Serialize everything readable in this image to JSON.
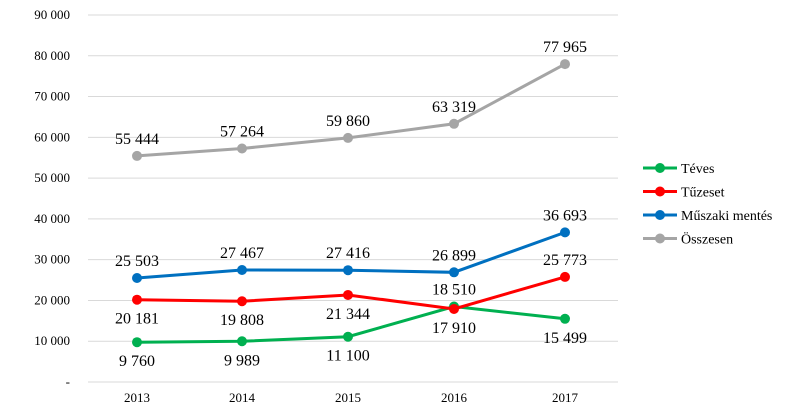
{
  "chart_data": {
    "type": "line",
    "title": "",
    "xlabel": "",
    "ylabel": "",
    "categories": [
      "2013",
      "2014",
      "2015",
      "2016",
      "2017"
    ],
    "ylim": [
      0,
      90000
    ],
    "yticks": [
      0,
      10000,
      20000,
      30000,
      40000,
      50000,
      60000,
      70000,
      80000,
      90000
    ],
    "ytick_labels": [
      "-",
      "10 000",
      "20 000",
      "30 000",
      "40 000",
      "50 000",
      "60 000",
      "70 000",
      "80 000",
      "90 000"
    ],
    "grid": true,
    "legend_position": "right",
    "series": [
      {
        "name": "Téves",
        "color": "#00b050",
        "values": [
          9760,
          9989,
          11100,
          18510,
          15499
        ],
        "labels": [
          "9 760",
          "9 989",
          "11 100",
          "18 510",
          "15 499"
        ],
        "label_side": [
          "below",
          "below",
          "below",
          "above",
          "below"
        ]
      },
      {
        "name": "Tűzeset",
        "color": "#ff0000",
        "values": [
          20181,
          19808,
          21344,
          17910,
          25773
        ],
        "labels": [
          "20 181",
          "19 808",
          "21 344",
          "17 910",
          "25 773"
        ],
        "label_side": [
          "below",
          "below",
          "below",
          "below",
          "above"
        ]
      },
      {
        "name": "Műszaki mentés",
        "color": "#0070c0",
        "values": [
          25503,
          27467,
          27416,
          26899,
          36693
        ],
        "labels": [
          "25 503",
          "27 467",
          "27 416",
          "26 899",
          "36 693"
        ],
        "label_side": [
          "above",
          "above",
          "above",
          "above",
          "above"
        ]
      },
      {
        "name": "Összesen",
        "color": "#a5a5a5",
        "values": [
          55444,
          57264,
          59860,
          63319,
          77965
        ],
        "labels": [
          "55 444",
          "57 264",
          "59 860",
          "63 319",
          "77 965"
        ],
        "label_side": [
          "above",
          "above",
          "above",
          "above",
          "above"
        ]
      }
    ]
  }
}
